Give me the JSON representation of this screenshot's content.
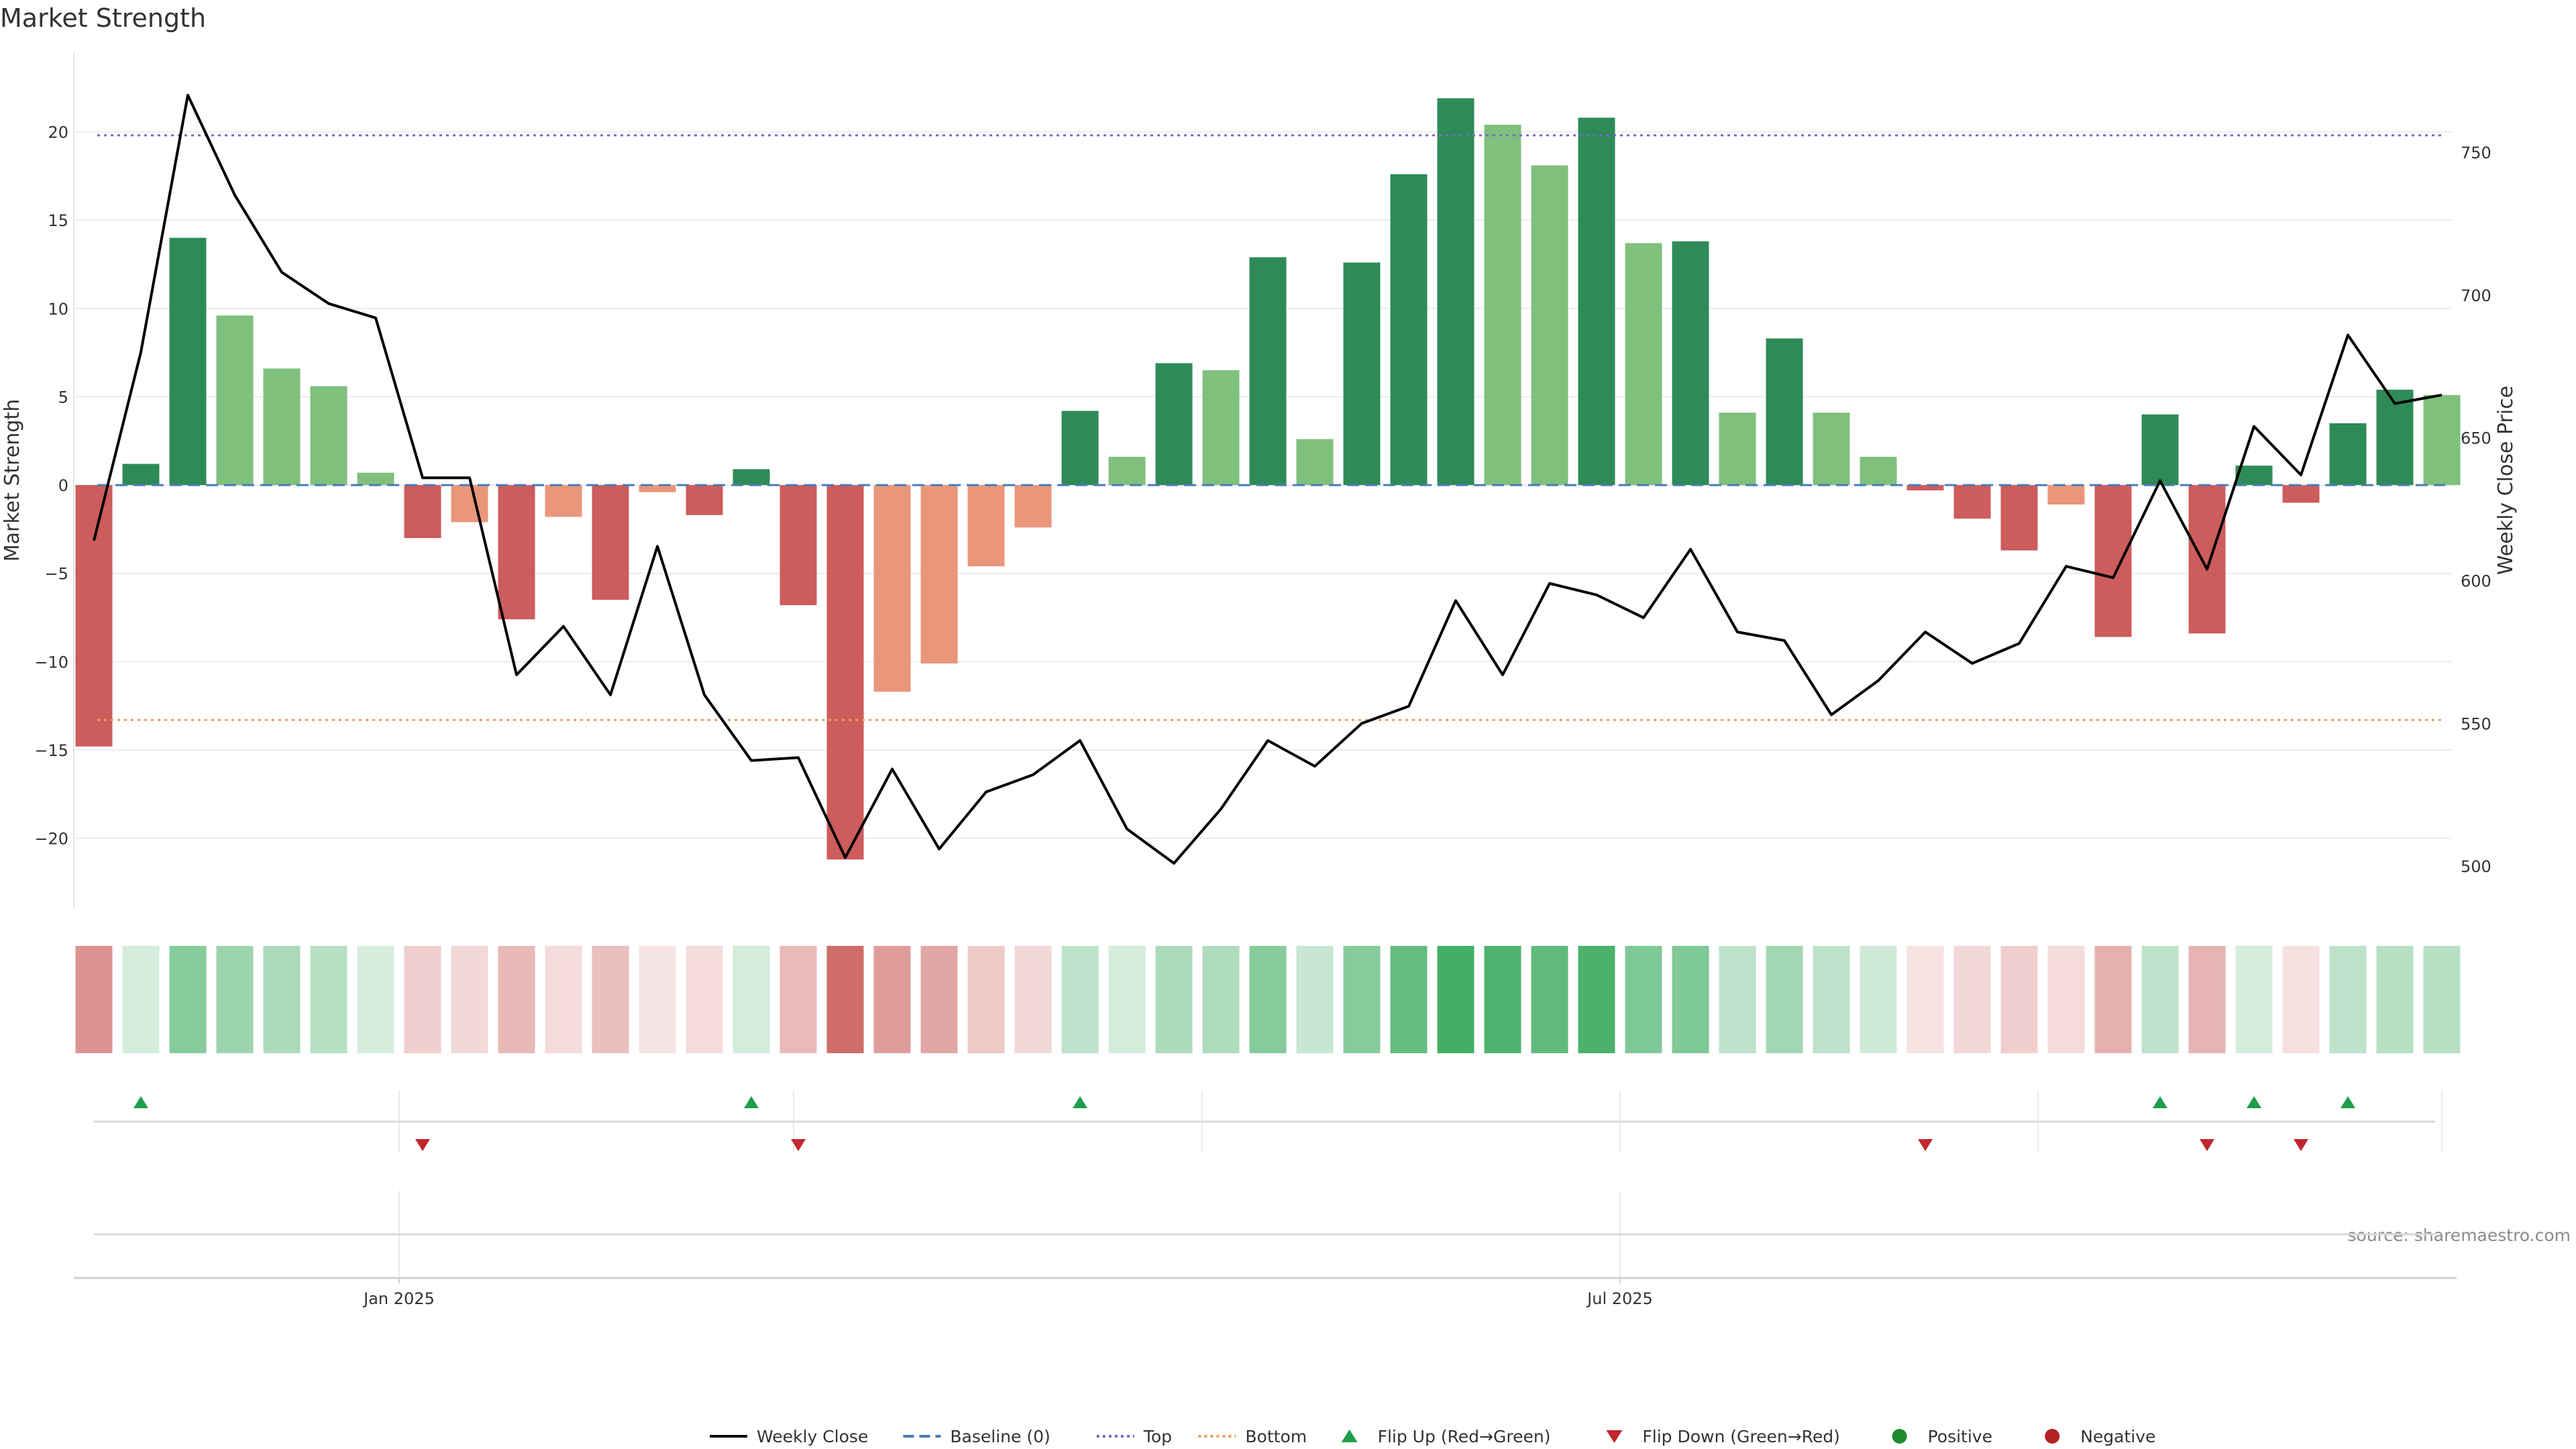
{
  "chart_data": {
    "type": "bar",
    "title": "Market Strength",
    "ylabel_left": "Market Strength",
    "ylabel_right": "Weekly Close Price",
    "ylim_left": [
      -24,
      24.5
    ],
    "ylim_right": [
      485,
      785
    ],
    "left_ticks": [
      "20",
      "15",
      "10",
      "5",
      "0",
      "−5",
      "−10",
      "−15",
      "−20"
    ],
    "left_tick_values": [
      20,
      15,
      10,
      5,
      0,
      -5,
      -10,
      -15,
      -20
    ],
    "right_ticks": [
      "750",
      "700",
      "650",
      "600",
      "550",
      "500"
    ],
    "right_tick_values": [
      750,
      700,
      650,
      600,
      550,
      500
    ],
    "x_labels": [
      {
        "label": "Jan 2025",
        "index": 6.5
      },
      {
        "label": "Jul 2025",
        "index": 32.5
      }
    ],
    "top_line": 19.8,
    "bottom_line": -13.3,
    "strength": [
      -14.8,
      1.2,
      14.0,
      9.6,
      6.6,
      5.6,
      0.7,
      -3.0,
      -2.1,
      -7.6,
      -1.8,
      -6.5,
      -0.4,
      -1.7,
      0.9,
      -6.8,
      -21.2,
      -11.7,
      -10.1,
      -4.6,
      -2.4,
      4.2,
      1.6,
      6.9,
      6.5,
      12.9,
      2.6,
      12.6,
      17.6,
      21.9,
      20.4,
      18.1,
      20.8,
      13.7,
      13.8,
      4.1,
      8.3,
      4.1,
      1.6,
      -0.3,
      -1.9,
      -3.7,
      -1.1,
      -8.6,
      4.0,
      -8.4,
      1.1,
      -1.0,
      3.5,
      5.4,
      5.1
    ],
    "shade": [
      2,
      2,
      2,
      1,
      1,
      1,
      1,
      2,
      1,
      2,
      1,
      2,
      1,
      2,
      2,
      2,
      2,
      1,
      1,
      1,
      1,
      2,
      1,
      2,
      1,
      2,
      1,
      2,
      2,
      2,
      1,
      1,
      2,
      1,
      2,
      1,
      2,
      1,
      1,
      2,
      2,
      2,
      1,
      2,
      2,
      2,
      2,
      2,
      2,
      2,
      1
    ],
    "weekly_close": [
      614,
      680,
      770,
      735,
      708,
      697,
      692,
      636,
      636,
      567,
      584,
      560,
      612,
      560,
      537,
      538,
      503,
      534,
      506,
      526,
      532,
      544,
      513,
      501,
      520,
      544,
      535,
      550,
      556,
      593,
      567,
      599,
      595,
      587,
      611,
      582,
      579,
      553,
      565,
      582,
      571,
      578,
      605,
      601,
      635,
      604,
      654,
      637,
      686,
      662,
      665
    ],
    "heat_intensity": [
      0.55,
      0.2,
      0.55,
      0.45,
      0.38,
      0.33,
      0.18,
      0.25,
      0.2,
      0.36,
      0.18,
      0.33,
      0.14,
      0.18,
      0.2,
      0.35,
      0.75,
      0.5,
      0.45,
      0.28,
      0.2,
      0.3,
      0.2,
      0.38,
      0.37,
      0.55,
      0.25,
      0.55,
      0.7,
      0.85,
      0.8,
      0.72,
      0.82,
      0.58,
      0.58,
      0.3,
      0.42,
      0.3,
      0.22,
      0.15,
      0.2,
      0.25,
      0.18,
      0.4,
      0.3,
      0.38,
      0.2,
      0.16,
      0.3,
      0.33,
      0.33
    ],
    "flip_up_indices": [
      1,
      14,
      21,
      44,
      46,
      48
    ],
    "flip_down_indices": [
      7,
      15,
      39,
      45,
      47
    ],
    "colors": {
      "pos_strong": "#2e8b57",
      "pos_light": "#7fc07d",
      "neg_strong": "#cd5c5c",
      "neg_light": "#e9967a",
      "weekly_close": "#000000",
      "baseline": "#4a7bb7",
      "top": "#7b68c8",
      "bottom": "#e8a060",
      "flip_up": "#1e9e4a",
      "flip_down": "#c0282d",
      "positive_dot": "#1f8a2e",
      "negative_dot": "#b22222"
    },
    "legend": [
      {
        "label": "Weekly Close",
        "kind": "solid-line",
        "color": "#000000"
      },
      {
        "label": "Baseline (0)",
        "kind": "dashed-line",
        "color": "#4a7bb7"
      },
      {
        "label": "Top",
        "kind": "dotted-line",
        "color": "#7b68c8"
      },
      {
        "label": "Bottom",
        "kind": "dotted-line",
        "color": "#e8a060"
      },
      {
        "label": "Flip Up (Red→Green)",
        "kind": "triangle-up",
        "color": "#1e9e4a"
      },
      {
        "label": "Flip Down (Green→Red)",
        "kind": "triangle-down",
        "color": "#c0282d"
      },
      {
        "label": "Positive",
        "kind": "dot",
        "color": "#1f8a2e"
      },
      {
        "label": "Negative",
        "kind": "dot",
        "color": "#b22222"
      }
    ],
    "legend_placement": "bottom-center",
    "grid": true
  },
  "source_text": "source: sharemaestro.com"
}
